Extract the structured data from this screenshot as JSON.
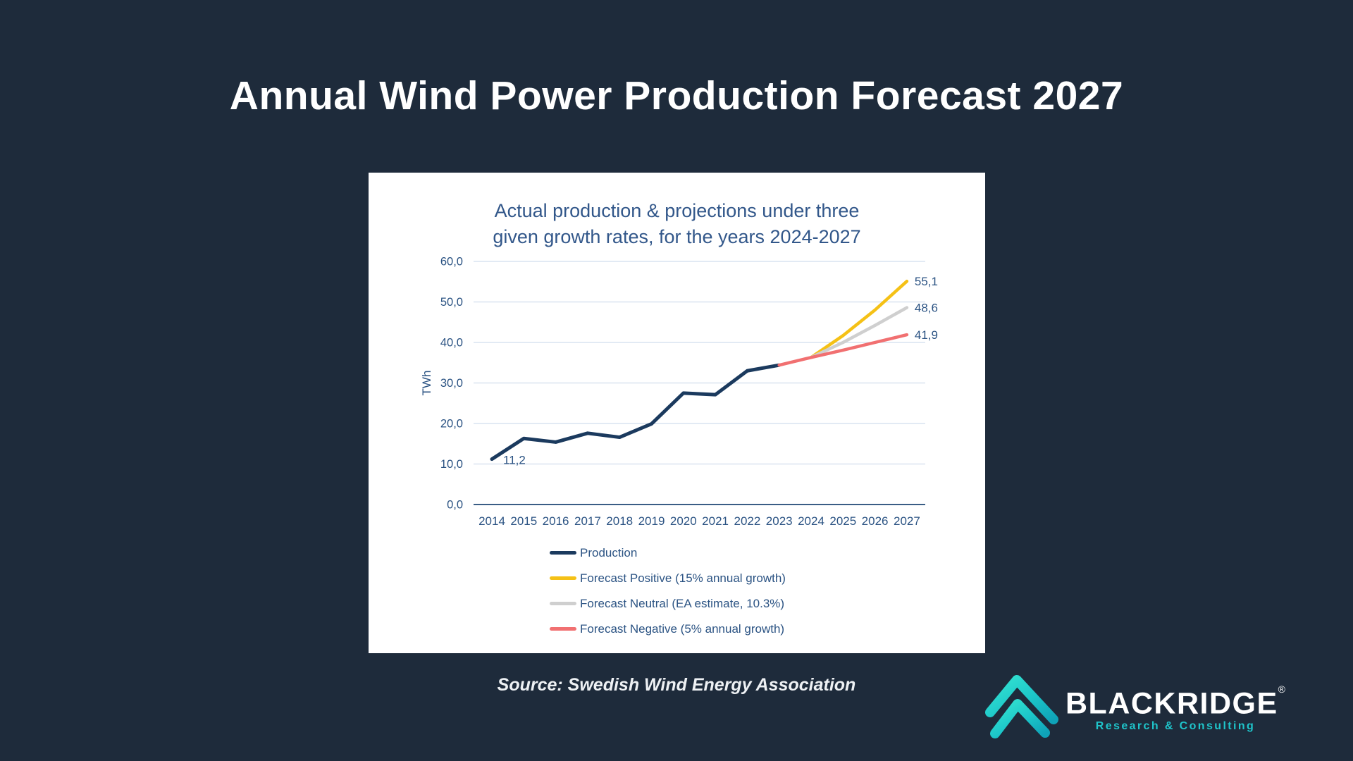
{
  "page": {
    "title": "Annual Wind Power Production Forecast 2027",
    "source": "Source: Swedish Wind Energy Association",
    "background_color": "#1e2b3b"
  },
  "brand": {
    "name": "BLACKRIDGE",
    "registered_mark": "®",
    "tagline": "Research & Consulting",
    "accent_teal": "#1fc4ca",
    "logo_icon": "double-chevron-mountain-icon"
  },
  "chart_data": {
    "type": "line",
    "title_line1": "Actual production & projections under three",
    "title_line2": "given growth rates, for the years 2024-2027",
    "ylabel": "TWh",
    "ylim": [
      0,
      60
    ],
    "ytick_step": 10,
    "ytick_labels": [
      "0,0",
      "10,0",
      "20,0",
      "30,0",
      "40,0",
      "50,0",
      "60,0"
    ],
    "x": [
      2014,
      2015,
      2016,
      2017,
      2018,
      2019,
      2020,
      2021,
      2022,
      2023,
      2024,
      2025,
      2026,
      2027
    ],
    "grid": true,
    "grid_color": "#d9e3f0",
    "axis_color": "#3a5d85",
    "label_color": "#2b5383",
    "legend_position": "bottom",
    "series": [
      {
        "name": "Production",
        "color": "#1b3a5e",
        "width": 5,
        "start_year": 2014,
        "values": [
          11.2,
          16.3,
          15.4,
          17.6,
          16.6,
          19.9,
          27.5,
          27.1,
          33.0,
          34.4
        ],
        "first_point_label": "11,2"
      },
      {
        "name": "Forecast Positive (15% annual growth)",
        "color": "#f5c116",
        "width": 4.5,
        "start_year": 2024,
        "values": [
          36.3,
          41.7,
          48.0,
          55.1
        ],
        "end_label": "55,1"
      },
      {
        "name": "Forecast Neutral (EA estimate, 10.3%)",
        "color": "#cfcfcf",
        "width": 4.5,
        "start_year": 2024,
        "values": [
          36.3,
          40.0,
          44.2,
          48.6
        ],
        "end_label": "48,6"
      },
      {
        "name": "Forecast Negative (5% annual growth)",
        "color": "#f17071",
        "width": 4.5,
        "start_year": 2023,
        "values": [
          34.4,
          36.3,
          38.1,
          40.0,
          41.9
        ],
        "end_label": "41,9"
      }
    ]
  }
}
